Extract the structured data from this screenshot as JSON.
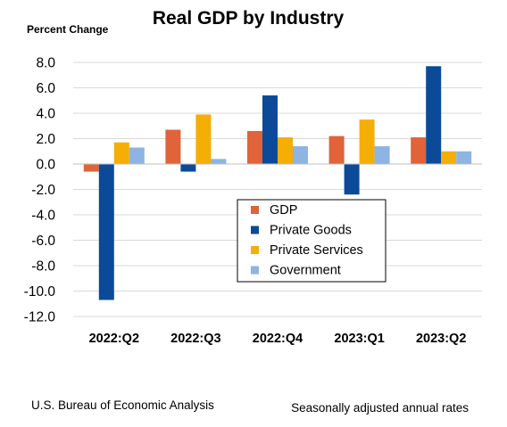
{
  "chart_data": {
    "type": "bar",
    "title": "Real GDP by Industry",
    "ylabel": "Percent Change",
    "xlabel": "",
    "categories": [
      "2022:Q2",
      "2022:Q3",
      "2022:Q4",
      "2023:Q1",
      "2023:Q2"
    ],
    "series": [
      {
        "name": "GDP",
        "color": "#E0633A",
        "values": [
          -0.6,
          2.7,
          2.6,
          2.2,
          2.1
        ]
      },
      {
        "name": "Private Goods",
        "color": "#0B4A98",
        "values": [
          -10.7,
          -0.6,
          5.4,
          -2.4,
          7.7
        ]
      },
      {
        "name": "Private Services",
        "color": "#F5AE05",
        "values": [
          1.7,
          3.9,
          2.1,
          3.5,
          1.0
        ]
      },
      {
        "name": "Government",
        "color": "#8DB4E2",
        "values": [
          1.3,
          0.4,
          1.4,
          1.4,
          1.0
        ]
      }
    ],
    "ylim": [
      -12,
      8
    ],
    "yticks": [
      "8.0",
      "6.0",
      "4.0",
      "2.0",
      "0.0",
      "-2.0",
      "-4.0",
      "-6.0",
      "-8.0",
      "-10.0",
      "-12.0"
    ],
    "ytick_values": [
      8,
      6,
      4,
      2,
      0,
      -2,
      -4,
      -6,
      -8,
      -10,
      -12
    ],
    "grid": true,
    "legend_position": "center"
  },
  "footer": {
    "source": "U.S. Bureau of Economic Analysis",
    "note": "Seasonally adjusted annual rates"
  },
  "colors": {
    "grid": "#D9D9D9",
    "axis": "#BFBFBF"
  }
}
